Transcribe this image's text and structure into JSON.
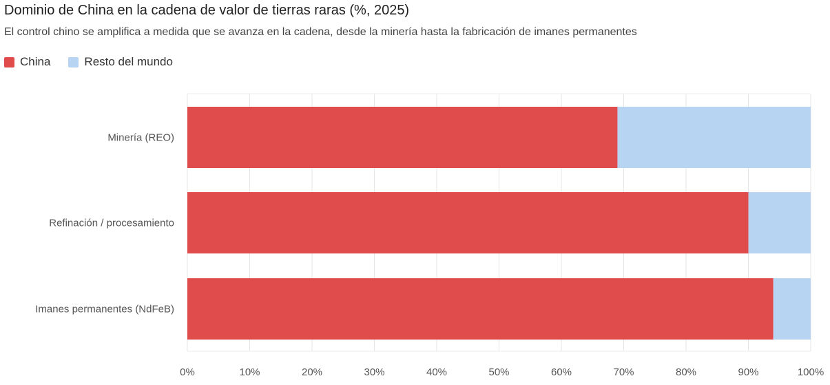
{
  "chart_data": {
    "type": "bar",
    "orientation": "horizontal",
    "stacked": true,
    "title": "Dominio de China en la cadena de valor de tierras raras (%, 2025)",
    "subtitle": "El control chino se amplifica a medida que se avanza en la cadena, desde la minería hasta la fabricación de imanes permanentes",
    "categories": [
      "Minería (REO)",
      "Refinación / procesamiento",
      "Imanes permanentes (NdFeB)"
    ],
    "series": [
      {
        "name": "China",
        "color": "#e04b4b",
        "values": [
          69,
          90,
          94
        ]
      },
      {
        "name": "Resto del mundo",
        "color": "#b7d4f2",
        "values": [
          31,
          10,
          6
        ]
      }
    ],
    "xlim": [
      0,
      100
    ],
    "xticks": [
      "0%",
      "10%",
      "20%",
      "30%",
      "40%",
      "50%",
      "60%",
      "70%",
      "80%",
      "90%",
      "100%"
    ],
    "grid": true,
    "legend_position": "top-left"
  }
}
